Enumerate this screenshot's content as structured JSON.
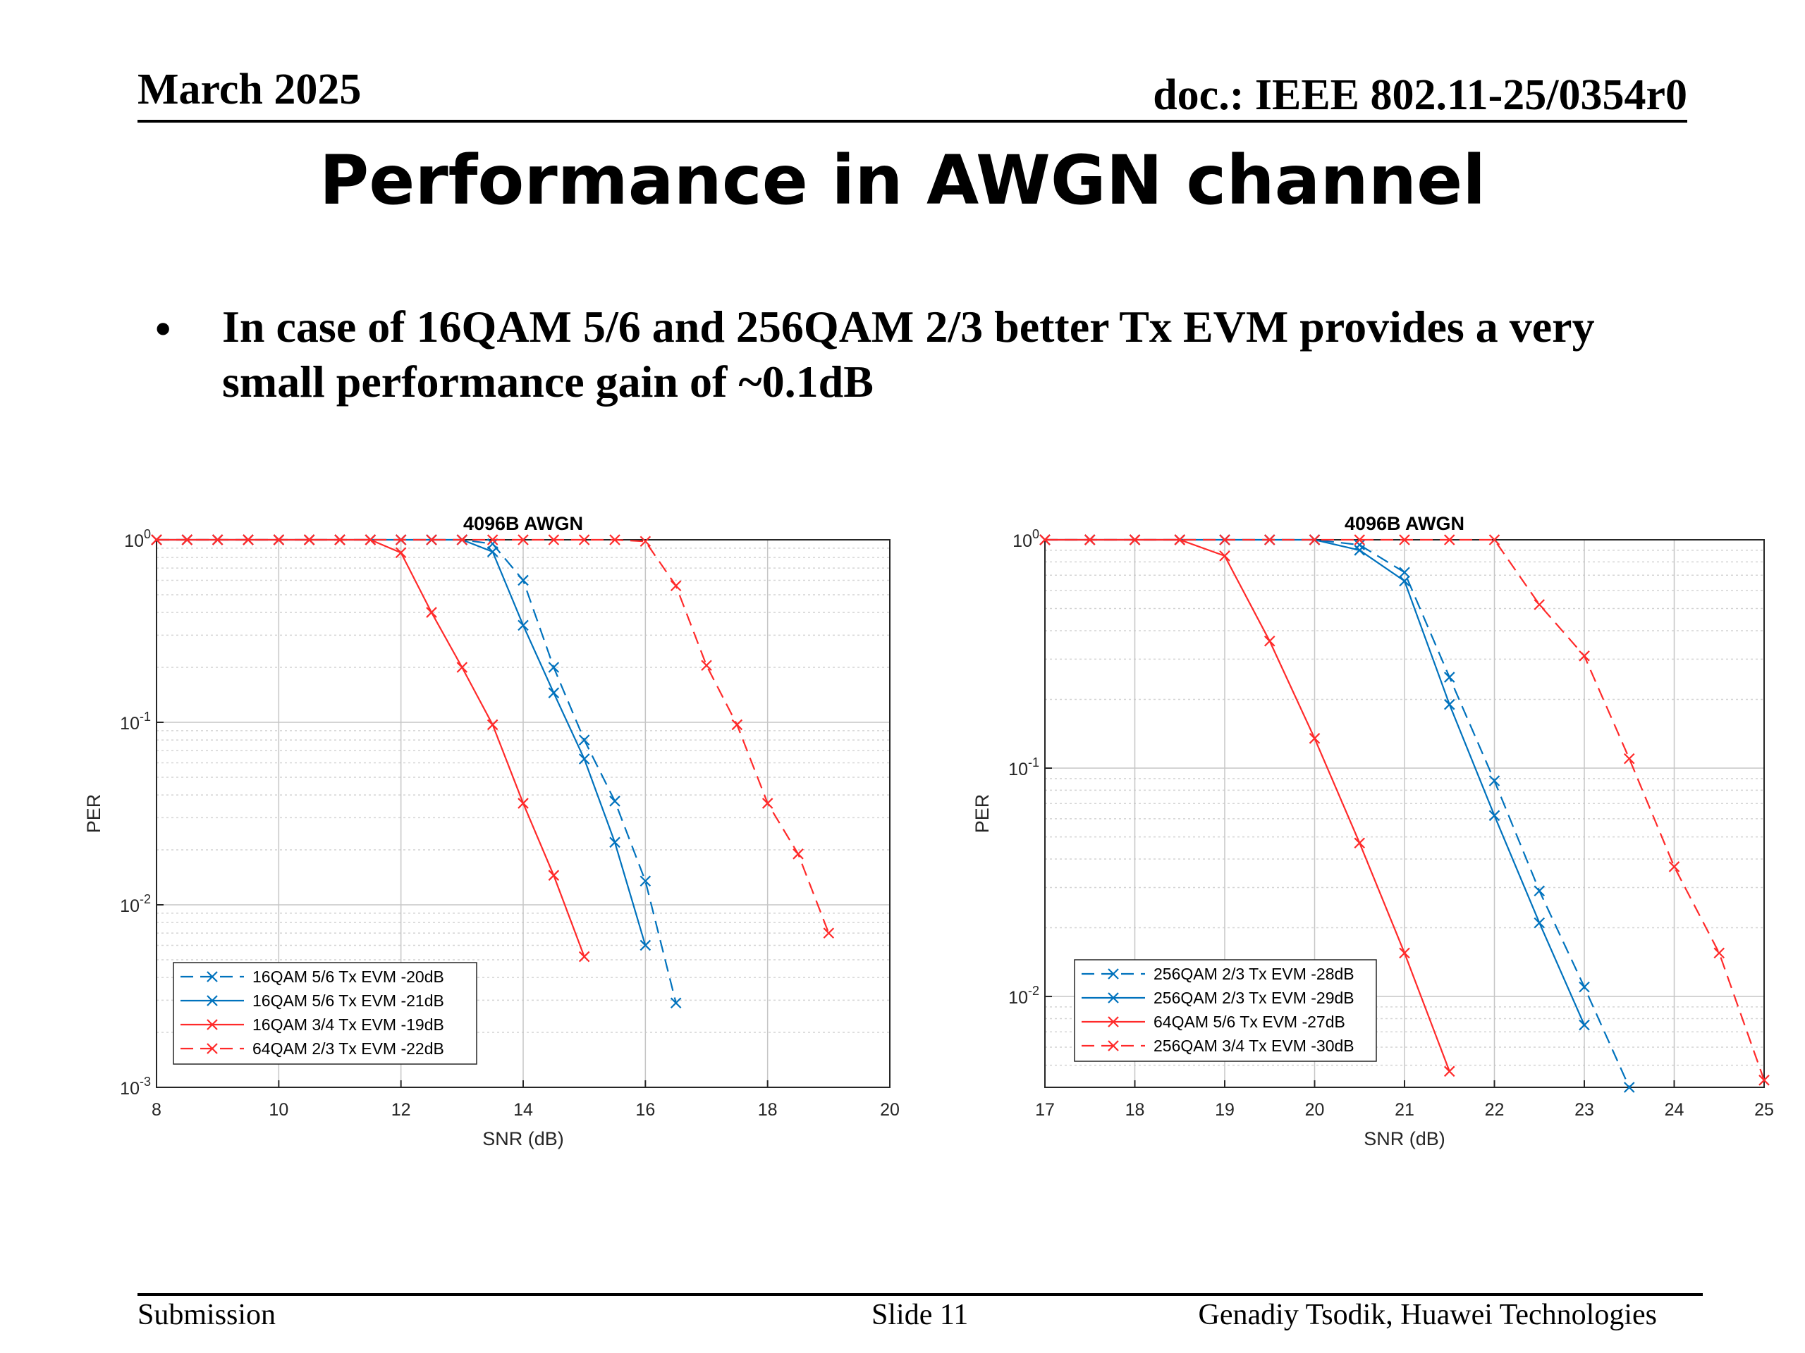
{
  "header": {
    "date": "March 2025",
    "doc": "doc.: IEEE 802.11-25/0354r0"
  },
  "title": "Performance in AWGN channel",
  "bullet": {
    "marker": "•",
    "text": "In case of 16QAM 5/6 and 256QAM 2/3 better Tx EVM provides a very small performance gain of ~0.1dB"
  },
  "footer": {
    "left": "Submission",
    "center": "Slide 11",
    "right": "Genadiy Tsodik, Huawei Technologies"
  },
  "colors": {
    "blue": "#0072BD",
    "red": "#FF2A2A"
  },
  "chart_data": [
    {
      "type": "line",
      "title": "4096B AWGN",
      "xlabel": "SNR (dB)",
      "ylabel": "PER",
      "xlim": [
        8,
        20
      ],
      "ylim": [
        0.001,
        1
      ],
      "yscale": "log",
      "grid": true,
      "legend_position": "bottom-left",
      "xticks": [
        8,
        10,
        12,
        14,
        16,
        18,
        20
      ],
      "yticks": [
        0.001,
        0.01,
        0.1,
        1
      ],
      "ytick_labels": [
        {
          "base": "10",
          "exp": "-3"
        },
        {
          "base": "10",
          "exp": "-2"
        },
        {
          "base": "10",
          "exp": "-1"
        },
        {
          "base": "10",
          "exp": "0"
        }
      ],
      "series": [
        {
          "name": "16QAM 5/6 Tx EVM -20dB",
          "color": "#0072BD",
          "dash": true,
          "x": [
            8,
            8.5,
            9,
            9.5,
            10,
            10.5,
            11,
            11.5,
            12,
            12.5,
            13,
            13.5,
            14,
            14.5,
            15,
            15.5,
            16,
            16.5
          ],
          "y": [
            1,
            1,
            1,
            1,
            1,
            1,
            1,
            1,
            1,
            1,
            1,
            0.95,
            0.6,
            0.2,
            0.08,
            0.037,
            0.0135,
            0.0029
          ]
        },
        {
          "name": "16QAM 5/6 Tx EVM -21dB",
          "color": "#0072BD",
          "dash": false,
          "x": [
            8,
            8.5,
            9,
            9.5,
            10,
            10.5,
            11,
            11.5,
            12,
            12.5,
            13,
            13.5,
            14,
            14.5,
            15,
            15.5,
            16
          ],
          "y": [
            1,
            1,
            1,
            1,
            1,
            1,
            1,
            1,
            1,
            1,
            1,
            0.86,
            0.34,
            0.145,
            0.063,
            0.022,
            0.006
          ]
        },
        {
          "name": "16QAM 3/4 Tx EVM -19dB",
          "color": "#FF2A2A",
          "dash": false,
          "x": [
            8,
            8.5,
            9,
            9.5,
            10,
            10.5,
            11,
            11.5,
            12,
            12.5,
            13,
            13.5,
            14,
            14.5,
            15
          ],
          "y": [
            1,
            1,
            1,
            1,
            1,
            1,
            1,
            1,
            0.85,
            0.4,
            0.2,
            0.097,
            0.036,
            0.0145,
            0.0052
          ]
        },
        {
          "name": "64QAM 2/3 Tx EVM -22dB",
          "color": "#FF2A2A",
          "dash": true,
          "x": [
            8,
            8.5,
            9,
            9.5,
            10,
            10.5,
            11,
            11.5,
            12,
            12.5,
            13,
            13.5,
            14,
            14.5,
            15,
            15.5,
            16,
            16.5,
            17,
            17.5,
            18,
            18.5,
            19
          ],
          "y": [
            1,
            1,
            1,
            1,
            1,
            1,
            1,
            1,
            1,
            1,
            1,
            1,
            1,
            1,
            1,
            1,
            0.98,
            0.56,
            0.205,
            0.097,
            0.036,
            0.019,
            0.007
          ]
        }
      ]
    },
    {
      "type": "line",
      "title": "4096B AWGN",
      "xlabel": "SNR (dB)",
      "ylabel": "PER",
      "xlim": [
        17,
        25
      ],
      "ylim": [
        0.004,
        1
      ],
      "yscale": "log",
      "grid": true,
      "legend_position": "bottom-left",
      "xticks": [
        17,
        18,
        19,
        20,
        21,
        22,
        23,
        24,
        25
      ],
      "yticks": [
        0.01,
        0.1,
        1
      ],
      "ytick_labels": [
        {
          "base": "10",
          "exp": "-2"
        },
        {
          "base": "10",
          "exp": "-1"
        },
        {
          "base": "10",
          "exp": "0"
        }
      ],
      "series": [
        {
          "name": "256QAM 2/3 Tx EVM -28dB",
          "color": "#0072BD",
          "dash": true,
          "x": [
            17,
            17.5,
            18,
            18.5,
            19,
            19.5,
            20,
            20.5,
            21,
            21.5,
            22,
            22.5,
            23,
            23.5
          ],
          "y": [
            1,
            1,
            1,
            1,
            1,
            1,
            1,
            0.95,
            0.72,
            0.25,
            0.088,
            0.029,
            0.011,
            0.004
          ]
        },
        {
          "name": "256QAM 2/3 Tx EVM -29dB",
          "color": "#0072BD",
          "dash": false,
          "x": [
            17,
            17.5,
            18,
            18.5,
            19,
            19.5,
            20,
            20.5,
            21,
            21.5,
            22,
            22.5,
            23
          ],
          "y": [
            1,
            1,
            1,
            1,
            1,
            1,
            1,
            0.9,
            0.66,
            0.19,
            0.062,
            0.021,
            0.0075
          ]
        },
        {
          "name": "64QAM 5/6 Tx EVM -27dB",
          "color": "#FF2A2A",
          "dash": false,
          "x": [
            17,
            17.5,
            18,
            18.5,
            19,
            19.5,
            20,
            20.5,
            21,
            21.5
          ],
          "y": [
            1,
            1,
            1,
            1,
            0.85,
            0.36,
            0.135,
            0.047,
            0.0155,
            0.0047
          ]
        },
        {
          "name": "256QAM 3/4 Tx EVM -30dB",
          "color": "#FF2A2A",
          "dash": true,
          "x": [
            17,
            17.5,
            18,
            18.5,
            19,
            19.5,
            20,
            20.5,
            21,
            21.5,
            22,
            22.5,
            23,
            23.5,
            24,
            24.5,
            25
          ],
          "y": [
            1,
            1,
            1,
            1,
            1,
            1,
            1,
            1,
            1,
            1,
            1,
            0.52,
            0.31,
            0.11,
            0.037,
            0.0155,
            0.0043
          ]
        }
      ]
    }
  ]
}
